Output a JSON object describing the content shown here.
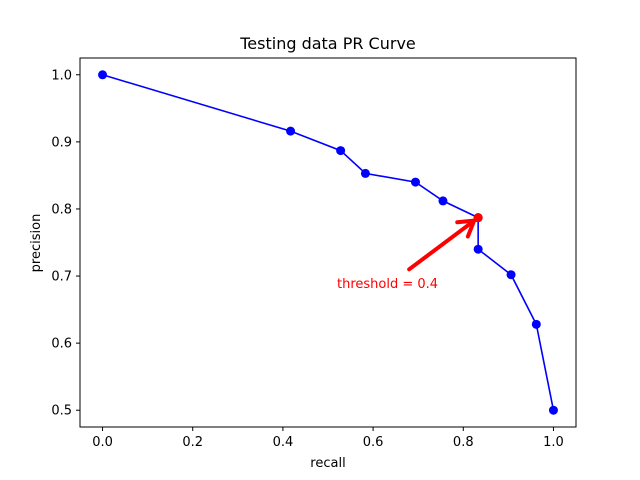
{
  "chart_data": {
    "type": "line",
    "title": "Testing data PR Curve",
    "xlabel": "recall",
    "ylabel": "precision",
    "xlim": [
      -0.05,
      1.05
    ],
    "ylim": [
      0.475,
      1.025
    ],
    "xticks": [
      0.0,
      0.2,
      0.4,
      0.6,
      0.8,
      1.0
    ],
    "xtick_labels": [
      "0.0",
      "0.2",
      "0.4",
      "0.6",
      "0.8",
      "1.0"
    ],
    "yticks": [
      0.5,
      0.6,
      0.7,
      0.8,
      0.9,
      1.0
    ],
    "ytick_labels": [
      "0.5",
      "0.6",
      "0.7",
      "0.8",
      "0.9",
      "1.0"
    ],
    "grid": false,
    "series": [
      {
        "color": "#0000ff",
        "marker": "circle",
        "x": [
          0.0,
          0.417,
          0.528,
          0.583,
          0.694,
          0.755,
          0.833,
          0.833,
          0.906,
          0.962,
          1.0
        ],
        "y": [
          1.0,
          0.916,
          0.887,
          0.853,
          0.84,
          0.812,
          0.787,
          0.74,
          0.702,
          0.628,
          0.5
        ]
      }
    ],
    "highlight_point": {
      "x": 0.833,
      "y": 0.787,
      "color": "#ff0000"
    },
    "annotation": {
      "text": "threshold = 0.4",
      "color": "#ff0000",
      "text_x": 0.52,
      "text_y": 0.69,
      "arrow_from_x": 0.68,
      "arrow_from_y": 0.71
    }
  }
}
